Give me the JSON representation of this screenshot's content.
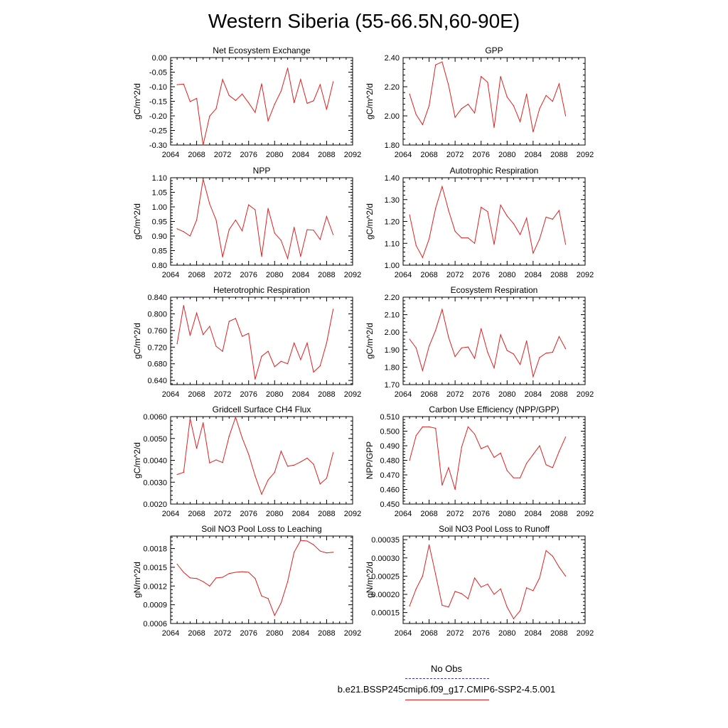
{
  "figure": {
    "title": "Western Siberia (55-66.5N,60-90E)",
    "legend": [
      {
        "label": "No Obs",
        "color": "#3333cc",
        "style": "dashed"
      },
      {
        "label": "b.e21.BSSP245cmip6.f09_g17.CMIP6-SSP2-4.5.001",
        "color": "#e02020",
        "style": "solid"
      }
    ]
  },
  "chart_data": [
    {
      "type": "line",
      "title": "Net Ecosystem Exchange",
      "ylabel": "gC/m^2/d",
      "xlim": [
        2064,
        2092
      ],
      "ylim": [
        -0.3,
        0.0
      ],
      "xticks": [
        "2064",
        "2068",
        "2072",
        "2076",
        "2080",
        "2084",
        "2088",
        "2092"
      ],
      "yticks": [
        "-0.30",
        "-0.25",
        "-0.20",
        "-0.15",
        "-0.10",
        "-0.05",
        "0.00"
      ],
      "series": [
        {
          "color": "#e02020",
          "x": [
            2065,
            2066,
            2067,
            2068,
            2069,
            2070,
            2071,
            2072,
            2073,
            2074,
            2075,
            2076,
            2077,
            2078,
            2079,
            2080,
            2081,
            2082,
            2083,
            2084,
            2085,
            2086,
            2087,
            2088,
            2089
          ],
          "y": [
            -0.093,
            -0.091,
            -0.151,
            -0.14,
            -0.3,
            -0.201,
            -0.175,
            -0.075,
            -0.13,
            -0.147,
            -0.125,
            -0.155,
            -0.188,
            -0.09,
            -0.217,
            -0.16,
            -0.115,
            -0.036,
            -0.155,
            -0.075,
            -0.157,
            -0.148,
            -0.093,
            -0.178,
            -0.083
          ]
        }
      ]
    },
    {
      "type": "line",
      "title": "GPP",
      "ylabel": "gC/m^2/d",
      "xlim": [
        2064,
        2092
      ],
      "ylim": [
        1.8,
        2.4
      ],
      "xticks": [
        "2064",
        "2068",
        "2072",
        "2076",
        "2080",
        "2084",
        "2088",
        "2092"
      ],
      "yticks": [
        "1.80",
        "2.00",
        "2.20",
        "2.40"
      ],
      "series": [
        {
          "color": "#e02020",
          "x": [
            2065,
            2066,
            2067,
            2068,
            2069,
            2070,
            2071,
            2072,
            2073,
            2074,
            2075,
            2076,
            2077,
            2078,
            2079,
            2080,
            2081,
            2082,
            2083,
            2084,
            2085,
            2086,
            2087,
            2088,
            2089
          ],
          "y": [
            2.15,
            2.01,
            1.94,
            2.07,
            2.35,
            2.37,
            2.21,
            1.99,
            2.05,
            2.08,
            2.02,
            2.27,
            2.23,
            1.92,
            2.27,
            2.13,
            2.07,
            1.96,
            2.15,
            1.89,
            2.05,
            2.14,
            2.1,
            2.22,
            2.0
          ]
        }
      ]
    },
    {
      "type": "line",
      "title": "NPP",
      "ylabel": "gC/m^2/d",
      "xlim": [
        2064,
        2092
      ],
      "ylim": [
        0.8,
        1.1
      ],
      "xticks": [
        "2064",
        "2068",
        "2072",
        "2076",
        "2080",
        "2084",
        "2088",
        "2092"
      ],
      "yticks": [
        "0.80",
        "0.85",
        "0.90",
        "0.95",
        "1.00",
        "1.05",
        "1.10"
      ],
      "series": [
        {
          "color": "#e02020",
          "x": [
            2065,
            2066,
            2067,
            2068,
            2069,
            2070,
            2071,
            2072,
            2073,
            2074,
            2075,
            2076,
            2077,
            2078,
            2079,
            2080,
            2081,
            2082,
            2083,
            2084,
            2085,
            2086,
            2087,
            2088,
            2089
          ],
          "y": [
            0.925,
            0.915,
            0.9,
            0.955,
            1.095,
            1.01,
            0.955,
            0.828,
            0.922,
            0.955,
            0.918,
            1.007,
            0.99,
            0.83,
            0.995,
            0.91,
            0.885,
            0.823,
            0.93,
            0.83,
            0.922,
            0.92,
            0.888,
            0.967,
            0.905
          ]
        }
      ]
    },
    {
      "type": "line",
      "title": "Autotrophic Respiration",
      "ylabel": "gC/m^2/d",
      "xlim": [
        2064,
        2092
      ],
      "ylim": [
        1.0,
        1.4
      ],
      "xticks": [
        "2064",
        "2068",
        "2072",
        "2076",
        "2080",
        "2084",
        "2088",
        "2092"
      ],
      "yticks": [
        "1.00",
        "1.10",
        "1.20",
        "1.30",
        "1.40"
      ],
      "series": [
        {
          "color": "#e02020",
          "x": [
            2065,
            2066,
            2067,
            2068,
            2069,
            2070,
            2071,
            2072,
            2073,
            2074,
            2075,
            2076,
            2077,
            2078,
            2079,
            2080,
            2081,
            2082,
            2083,
            2084,
            2085,
            2086,
            2087,
            2088,
            2089
          ],
          "y": [
            1.23,
            1.09,
            1.035,
            1.12,
            1.26,
            1.36,
            1.25,
            1.155,
            1.125,
            1.125,
            1.1,
            1.265,
            1.245,
            1.095,
            1.275,
            1.225,
            1.19,
            1.14,
            1.215,
            1.055,
            1.12,
            1.22,
            1.21,
            1.25,
            1.095
          ]
        }
      ]
    },
    {
      "type": "line",
      "title": "Heterotrophic Respiration",
      "ylabel": "gC/m^2/d",
      "xlim": [
        2064,
        2092
      ],
      "ylim": [
        0.63,
        0.84
      ],
      "xticks": [
        "2064",
        "2068",
        "2072",
        "2076",
        "2080",
        "2084",
        "2088",
        "2092"
      ],
      "yticks": [
        "0.640",
        "0.680",
        "0.720",
        "0.760",
        "0.800",
        "0.840"
      ],
      "series": [
        {
          "color": "#e02020",
          "x": [
            2065,
            2066,
            2067,
            2068,
            2069,
            2070,
            2071,
            2072,
            2073,
            2074,
            2075,
            2076,
            2077,
            2078,
            2079,
            2080,
            2081,
            2082,
            2083,
            2084,
            2085,
            2086,
            2087,
            2088,
            2089
          ],
          "y": [
            0.728,
            0.82,
            0.748,
            0.802,
            0.75,
            0.77,
            0.722,
            0.71,
            0.782,
            0.789,
            0.746,
            0.753,
            0.643,
            0.698,
            0.71,
            0.673,
            0.686,
            0.68,
            0.73,
            0.69,
            0.73,
            0.66,
            0.675,
            0.73,
            0.811
          ]
        }
      ]
    },
    {
      "type": "line",
      "title": "Ecosystem Respiration",
      "ylabel": "gC/m^2/d",
      "xlim": [
        2064,
        2092
      ],
      "ylim": [
        1.7,
        2.2
      ],
      "xticks": [
        "2064",
        "2068",
        "2072",
        "2076",
        "2080",
        "2084",
        "2088",
        "2092"
      ],
      "yticks": [
        "1.70",
        "1.80",
        "1.90",
        "2.00",
        "2.10",
        "2.20"
      ],
      "series": [
        {
          "color": "#e02020",
          "x": [
            2065,
            2066,
            2067,
            2068,
            2069,
            2070,
            2071,
            2072,
            2073,
            2074,
            2075,
            2076,
            2077,
            2078,
            2079,
            2080,
            2081,
            2082,
            2083,
            2084,
            2085,
            2086,
            2087,
            2088,
            2089
          ],
          "y": [
            1.96,
            1.91,
            1.78,
            1.92,
            2.01,
            2.13,
            1.97,
            1.86,
            1.91,
            1.915,
            1.85,
            2.02,
            1.885,
            1.795,
            1.985,
            1.895,
            1.875,
            1.815,
            1.95,
            1.745,
            1.855,
            1.88,
            1.885,
            1.975,
            1.905
          ]
        }
      ]
    },
    {
      "type": "line",
      "title": "Gridcell Surface CH4 Flux",
      "ylabel": "gC/m^2/d",
      "xlim": [
        2064,
        2092
      ],
      "ylim": [
        0.002,
        0.006
      ],
      "xticks": [
        "2064",
        "2068",
        "2072",
        "2076",
        "2080",
        "2084",
        "2088",
        "2092"
      ],
      "yticks": [
        "0.0020",
        "0.0030",
        "0.0040",
        "0.0050",
        "0.0060"
      ],
      "series": [
        {
          "color": "#e02020",
          "x": [
            2065,
            2066,
            2067,
            2068,
            2069,
            2070,
            2071,
            2072,
            2073,
            2074,
            2075,
            2076,
            2077,
            2078,
            2079,
            2080,
            2081,
            2082,
            2083,
            2084,
            2085,
            2086,
            2087,
            2088,
            2089
          ],
          "y": [
            0.00335,
            0.00345,
            0.00592,
            0.00455,
            0.00572,
            0.00388,
            0.00402,
            0.0039,
            0.0051,
            0.00597,
            0.00503,
            0.00428,
            0.00328,
            0.00245,
            0.0031,
            0.00345,
            0.00442,
            0.00373,
            0.00378,
            0.00393,
            0.0041,
            0.00382,
            0.00292,
            0.00318,
            0.00435
          ]
        }
      ]
    },
    {
      "type": "line",
      "title": "Carbon Use Efficiency (NPP/GPP)",
      "ylabel": "NPP/GPP",
      "xlim": [
        2064,
        2092
      ],
      "ylim": [
        0.45,
        0.51
      ],
      "xticks": [
        "2064",
        "2068",
        "2072",
        "2076",
        "2080",
        "2084",
        "2088",
        "2092"
      ],
      "yticks": [
        "0.450",
        "0.460",
        "0.470",
        "0.480",
        "0.490",
        "0.500",
        "0.510"
      ],
      "series": [
        {
          "color": "#e02020",
          "x": [
            2065,
            2066,
            2067,
            2068,
            2069,
            2070,
            2071,
            2072,
            2073,
            2074,
            2075,
            2076,
            2077,
            2078,
            2079,
            2080,
            2081,
            2082,
            2083,
            2084,
            2085,
            2086,
            2087,
            2088,
            2089
          ],
          "y": [
            0.48,
            0.497,
            0.503,
            0.503,
            0.502,
            0.463,
            0.475,
            0.46,
            0.489,
            0.503,
            0.498,
            0.488,
            0.49,
            0.482,
            0.485,
            0.473,
            0.468,
            0.468,
            0.478,
            0.484,
            0.49,
            0.477,
            0.475,
            0.486,
            0.496
          ]
        }
      ]
    },
    {
      "type": "line",
      "title": "Soil NO3 Pool Loss to Leaching",
      "ylabel": "gN/m^2/d",
      "xlim": [
        2064,
        2092
      ],
      "ylim": [
        0.0006,
        0.002
      ],
      "xticks": [
        "2064",
        "2068",
        "2072",
        "2076",
        "2080",
        "2084",
        "2088",
        "2092"
      ],
      "yticks": [
        "0.0006",
        "0.0009",
        "0.0012",
        "0.0015",
        "0.0018"
      ],
      "series": [
        {
          "color": "#e02020",
          "x": [
            2065,
            2066,
            2067,
            2068,
            2069,
            2070,
            2071,
            2072,
            2073,
            2074,
            2075,
            2076,
            2077,
            2078,
            2079,
            2080,
            2081,
            2082,
            2083,
            2084,
            2085,
            2086,
            2087,
            2088,
            2089
          ],
          "y": [
            0.00155,
            0.00142,
            0.00133,
            0.00132,
            0.00127,
            0.0012,
            0.00133,
            0.00134,
            0.0014,
            0.00142,
            0.00143,
            0.00142,
            0.00132,
            0.00104,
            0.001,
            0.00073,
            0.00093,
            0.00127,
            0.00174,
            0.00193,
            0.00192,
            0.00186,
            0.00176,
            0.00173,
            0.00174
          ]
        }
      ]
    },
    {
      "type": "line",
      "title": "Soil NO3 Pool Loss to Runoff",
      "ylabel": "gN/m^2/d",
      "xlim": [
        2064,
        2092
      ],
      "ylim": [
        0.00012,
        0.00036
      ],
      "xticks": [
        "2064",
        "2068",
        "2072",
        "2076",
        "2080",
        "2084",
        "2088",
        "2092"
      ],
      "yticks": [
        "0.00015",
        "0.00020",
        "0.00025",
        "0.00030",
        "0.00035"
      ],
      "series": [
        {
          "color": "#e02020",
          "x": [
            2065,
            2066,
            2067,
            2068,
            2069,
            2070,
            2071,
            2072,
            2073,
            2074,
            2075,
            2076,
            2077,
            2078,
            2079,
            2080,
            2081,
            2082,
            2083,
            2084,
            2085,
            2086,
            2087,
            2088,
            2089
          ],
          "y": [
            0.000168,
            0.000215,
            0.00025,
            0.000336,
            0.000255,
            0.00017,
            0.000165,
            0.000208,
            0.000202,
            0.000188,
            0.000245,
            0.00022,
            0.000228,
            0.0002,
            0.000215,
            0.000165,
            0.000133,
            0.000155,
            0.000218,
            0.00021,
            0.000245,
            0.00032,
            0.000305,
            0.000275,
            0.00025
          ]
        }
      ]
    }
  ]
}
